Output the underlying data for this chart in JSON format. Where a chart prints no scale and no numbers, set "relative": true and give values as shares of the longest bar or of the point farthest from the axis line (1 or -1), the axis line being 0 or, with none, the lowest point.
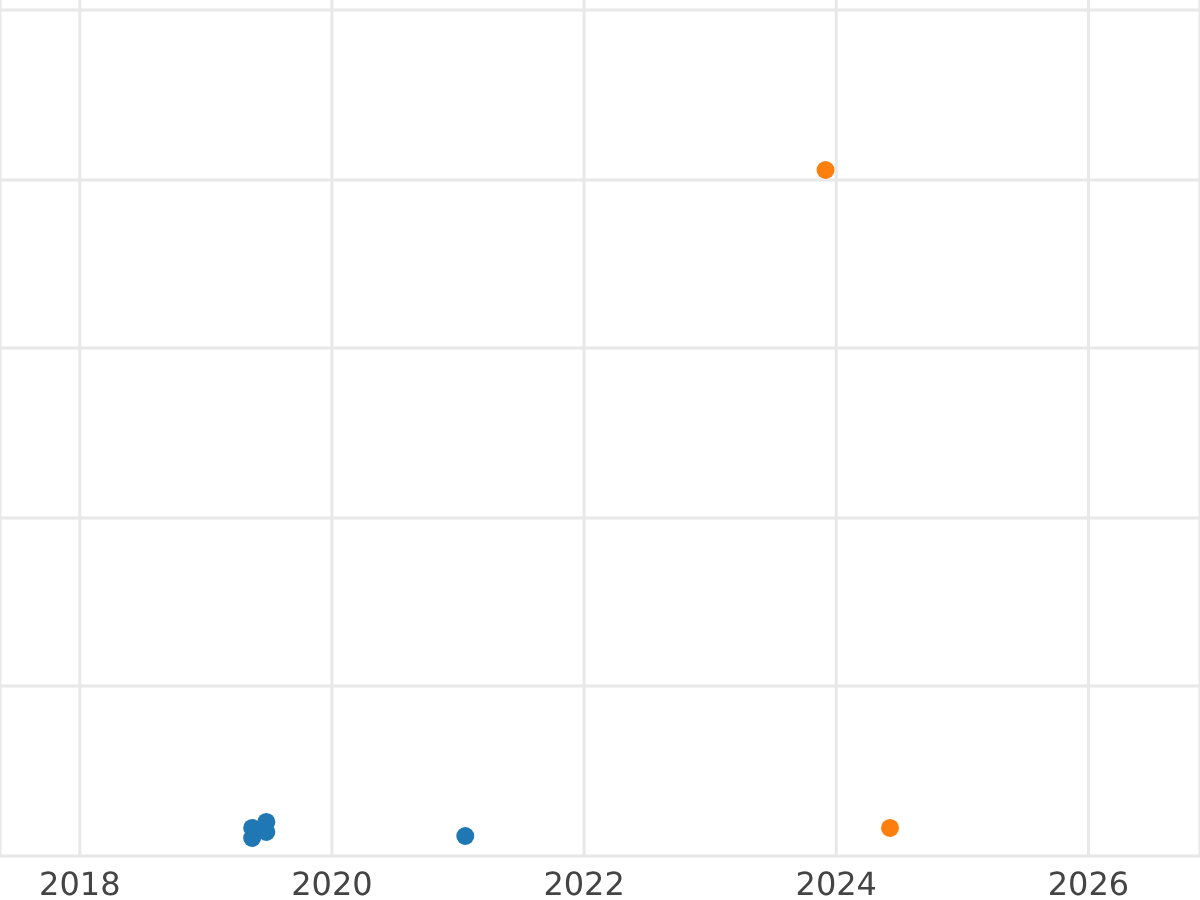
{
  "chart_data": {
    "type": "scatter",
    "relative": true,
    "grid": true,
    "marker": "circle",
    "xlim": [
      "2017-05-15",
      "2026-11-20"
    ],
    "xticks": [
      "2018",
      "2020",
      "2022",
      "2024",
      "2026"
    ],
    "series": [
      {
        "color": "#1f77b4",
        "x": [
          "2019-05-15",
          "2019-05-15",
          "2019-06-25",
          "2019-06-25",
          "2021-01-22"
        ],
        "values": [
          0.015,
          0,
          0.024,
          0.009,
          0.003
        ]
      },
      {
        "color": "#ff7f0e",
        "x": [
          "2023-12-01",
          "2024-06-05"
        ],
        "values": [
          1,
          0.015
        ]
      }
    ]
  }
}
